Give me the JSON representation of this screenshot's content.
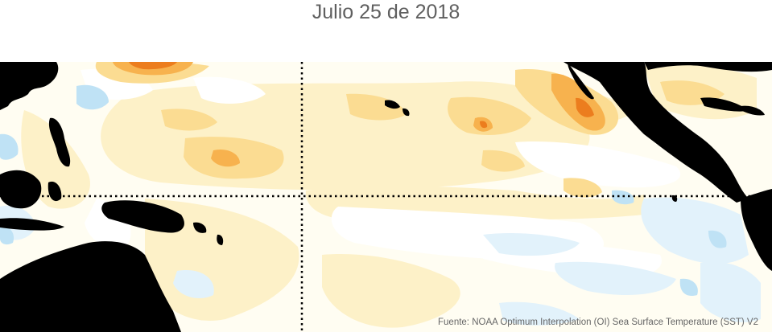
{
  "title": "Julio 25 de 2018",
  "source": "Fuente: NOAA Optimum Interpolation (OI) Sea Surface Temperature (SST) V2",
  "colors": {
    "land": "#000000",
    "ocean_background": "#fffdf2",
    "anomaly_warm_light": "#fdf1c8",
    "anomaly_warm": "#fbdc92",
    "anomaly_warm_strong": "#f7b24e",
    "anomaly_hot": "#ec7d1e",
    "anomaly_neutral": "#ffffff",
    "anomaly_cool_light": "#e2f2fb",
    "anomaly_cool": "#bfe2f5",
    "reference_lines": "#000000"
  },
  "reference_lines": [
    "equator",
    "dateline-180"
  ]
}
